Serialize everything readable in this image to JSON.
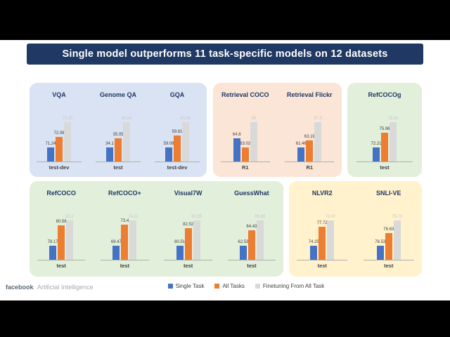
{
  "banner": {
    "title": "Single model outperforms 11 task-specific models on 12 datasets",
    "bg": "#203864",
    "text_color": "#ffffff"
  },
  "series": [
    {
      "name": "Single Task",
      "color": "#4472c4",
      "label_color": "#404040"
    },
    {
      "name": "All Tasks",
      "color": "#ed7d31",
      "label_color": "#404040"
    },
    {
      "name": "Finetuning From All Task",
      "color": "#d9d9d9",
      "label_color": "#c8c8c8"
    }
  ],
  "chart_data": [
    {
      "type": "bar",
      "panel": "qa-datasets-panel",
      "bg": "#dae3f3",
      "legend_position": "shared-bottom",
      "groups": [
        {
          "title": "VQA",
          "x_label": "test-dev",
          "values": [
            71.24,
            72.06,
            73.15
          ]
        },
        {
          "title": "Genome QA",
          "x_label": "test",
          "values": [
            34.1,
            35.05,
            36.64
          ]
        },
        {
          "title": "GQA",
          "x_label": "test-dev",
          "values": [
            59.09,
            59.81,
            60.65
          ]
        }
      ]
    },
    {
      "type": "bar",
      "panel": "retrieval-datasets-panel",
      "bg": "#fbe5d6",
      "legend_position": "shared-bottom",
      "groups": [
        {
          "title": "Retrieval COCO",
          "x_label": "R1",
          "values": [
            64.8,
            63.02,
            68.0
          ]
        },
        {
          "title": "Retrieval Flickr",
          "x_label": "R1",
          "values": [
            61.46,
            63.19,
            67.9
          ]
        }
      ]
    },
    {
      "type": "bar",
      "panel": "refcocog-panel",
      "bg": "#e2efda",
      "legend_position": "shared-bottom",
      "groups": [
        {
          "title": "RefCOCOg",
          "x_label": "test",
          "values": [
            72.21,
            75.96,
            78.63
          ]
        }
      ]
    },
    {
      "type": "bar",
      "panel": "grounding-datasets-panel",
      "bg": "#e2efda",
      "legend_position": "shared-bottom",
      "groups": [
        {
          "title": "RefCOCO",
          "x_label": "test",
          "values": [
            78.17,
            80.58,
            81.2
          ]
        },
        {
          "title": "RefCOCO+",
          "x_label": "test",
          "values": [
            69.47,
            73.4,
            74.22
          ]
        },
        {
          "title": "Visual7W",
          "x_label": "test",
          "values": [
            80.51,
            82.52,
            83.35
          ]
        },
        {
          "title": "GuessWhat",
          "x_label": "test",
          "values": [
            62.53,
            64.43,
            65.69
          ]
        }
      ]
    },
    {
      "type": "bar",
      "panel": "reasoning-datasets-panel",
      "bg": "#fff2cc",
      "legend_position": "shared-bottom",
      "groups": [
        {
          "title": "NLVR2",
          "x_label": "test",
          "values": [
            74.25,
            77.72,
            78.87
          ]
        },
        {
          "title": "SNLI-VE",
          "x_label": "test",
          "values": [
            76.53,
            76.63,
            76.73
          ]
        }
      ]
    }
  ],
  "footer": {
    "brand": "facebook",
    "brand_suffix": "Artificial Intelligence"
  }
}
